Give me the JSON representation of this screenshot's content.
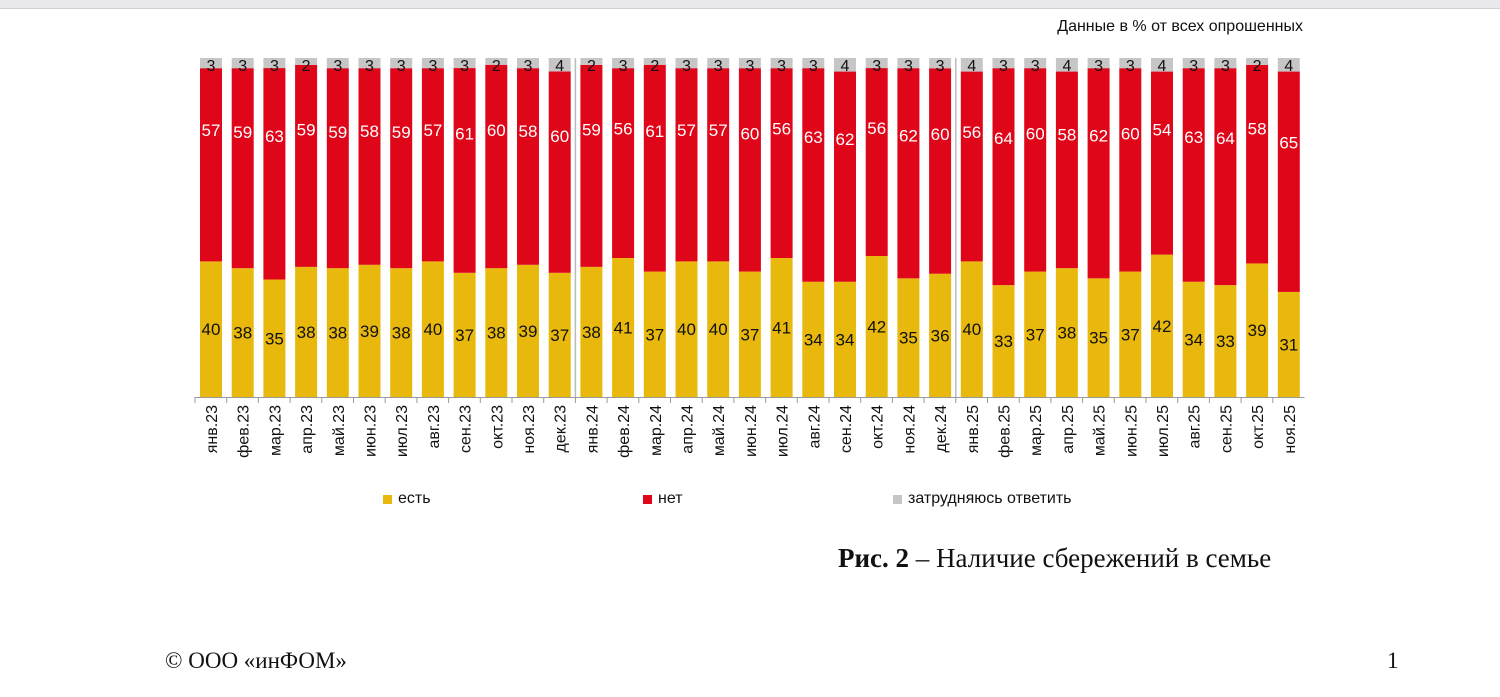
{
  "note": "Данные в % от всех опрошенных",
  "chart_data": {
    "type": "bar",
    "stacked": true,
    "orientation": "vertical",
    "ylim": [
      0,
      100
    ],
    "grid": false,
    "legend_position": "bottom",
    "categories": [
      "янв.23",
      "фев.23",
      "мар.23",
      "апр.23",
      "май.23",
      "июн.23",
      "июл.23",
      "авг.23",
      "сен.23",
      "окт.23",
      "ноя.23",
      "дек.23",
      "янв.24",
      "фев.24",
      "мар.24",
      "апр.24",
      "май.24",
      "июн.24",
      "июл.24",
      "авг.24",
      "сен.24",
      "окт.24",
      "ноя.24",
      "дек.24",
      "янв.25",
      "фев.25",
      "мар.25",
      "апр.25",
      "май.25",
      "июн.25",
      "июл.25",
      "авг.25",
      "сен.25",
      "окт.25",
      "ноя.25"
    ],
    "series": [
      {
        "name": "есть",
        "color": "#e8b90c",
        "values": [
          40,
          38,
          35,
          38,
          38,
          39,
          38,
          40,
          37,
          38,
          39,
          37,
          38,
          41,
          37,
          40,
          40,
          37,
          41,
          34,
          34,
          42,
          35,
          36,
          40,
          33,
          37,
          38,
          35,
          37,
          42,
          34,
          33,
          39,
          31
        ]
      },
      {
        "name": "нет",
        "color": "#e0061a",
        "values": [
          57,
          59,
          63,
          59,
          59,
          58,
          59,
          57,
          61,
          60,
          58,
          60,
          59,
          56,
          61,
          57,
          57,
          60,
          56,
          63,
          62,
          56,
          62,
          60,
          56,
          64,
          60,
          58,
          62,
          60,
          54,
          63,
          64,
          58,
          65
        ]
      },
      {
        "name": "затрудняюсь ответить",
        "color": "#c6c6c6",
        "values": [
          3,
          3,
          3,
          2,
          3,
          3,
          3,
          3,
          3,
          2,
          3,
          4,
          2,
          3,
          2,
          3,
          3,
          3,
          3,
          3,
          4,
          3,
          3,
          3,
          4,
          3,
          3,
          4,
          3,
          3,
          4,
          3,
          3,
          2,
          4
        ]
      }
    ]
  },
  "caption": {
    "prefix": "Рис. 2",
    "text": " – Наличие сбережений в семье"
  },
  "footer": "© ООО «инФОМ»",
  "page_number": "1"
}
